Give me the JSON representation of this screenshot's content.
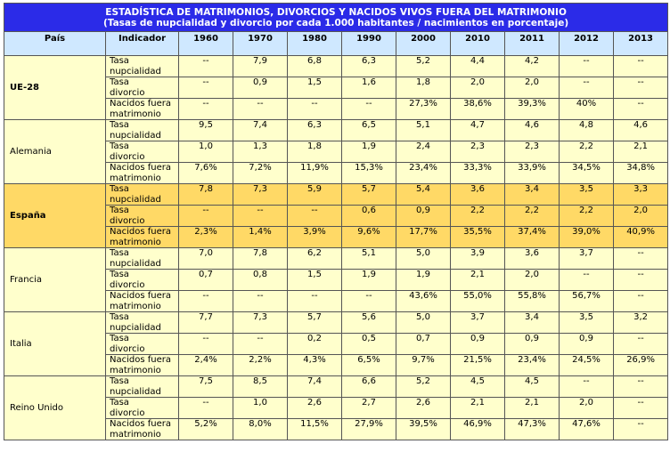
{
  "title": "ESTADÍSTICA DE MATRIMONIOS, DIVORCIOS Y NACIDOS VIVOS FUERA DEL MATRIMONIO",
  "subtitle": "(Tasas de nupcialidad y divorcio por cada 1.000 habitantes / nacimientos en porcentaje)",
  "headers": [
    "País",
    "Indicador",
    "1960",
    "1970",
    "1980",
    "1990",
    "2000",
    "2010",
    "2011",
    "2012",
    "2013"
  ],
  "indicators": [
    [
      "Tasa",
      "nupcialidad"
    ],
    [
      "Tasa",
      "divorcio"
    ],
    [
      "Nacidos fuera",
      "matrimonio"
    ]
  ],
  "highlight_color": "#ffd966",
  "countries": [
    {
      "name": "UE-28",
      "bold": true,
      "highlight": false,
      "rows": [
        [
          "--",
          "7,9",
          "6,8",
          "6,3",
          "5,2",
          "4,4",
          "4,2",
          "--",
          "--"
        ],
        [
          "--",
          "0,9",
          "1,5",
          "1,6",
          "1,8",
          "2,0",
          "2,0",
          "--",
          "--"
        ],
        [
          "--",
          "--",
          "--",
          "--",
          "27,3%",
          "38,6%",
          "39,3%",
          "40%",
          "--"
        ]
      ]
    },
    {
      "name": "Alemania",
      "bold": false,
      "highlight": false,
      "rows": [
        [
          "9,5",
          "7,4",
          "6,3",
          "6,5",
          "5,1",
          "4,7",
          "4,6",
          "4,8",
          "4,6"
        ],
        [
          "1,0",
          "1,3",
          "1,8",
          "1,9",
          "2,4",
          "2,3",
          "2,3",
          "2,2",
          "2,1"
        ],
        [
          "7,6%",
          "7,2%",
          "11,9%",
          "15,3%",
          "23,4%",
          "33,3%",
          "33,9%",
          "34,5%",
          "34,8%"
        ]
      ]
    },
    {
      "name": "España",
      "bold": true,
      "highlight": true,
      "rows": [
        [
          "7,8",
          "7,3",
          "5,9",
          "5,7",
          "5,4",
          "3,6",
          "3,4",
          "3,5",
          "3,3"
        ],
        [
          "--",
          "--",
          "--",
          "0,6",
          "0,9",
          "2,2",
          "2,2",
          "2,2",
          "2,0"
        ],
        [
          "2,3%",
          "1,4%",
          "3,9%",
          "9,6%",
          "17,7%",
          "35,5%",
          "37,4%",
          "39,0%",
          "40,9%"
        ]
      ]
    },
    {
      "name": "Francia",
      "bold": false,
      "highlight": false,
      "rows": [
        [
          "7,0",
          "7,8",
          "6,2",
          "5,1",
          "5,0",
          "3,9",
          "3,6",
          "3,7",
          "--"
        ],
        [
          "0,7",
          "0,8",
          "1,5",
          "1,9",
          "1,9",
          "2,1",
          "2,0",
          "--",
          "--"
        ],
        [
          "--",
          "--",
          "--",
          "--",
          "43,6%",
          "55,0%",
          "55,8%",
          "56,7%",
          "--"
        ]
      ]
    },
    {
      "name": "Italia",
      "bold": false,
      "highlight": false,
      "rows": [
        [
          "7,7",
          "7,3",
          "5,7",
          "5,6",
          "5,0",
          "3,7",
          "3,4",
          "3,5",
          "3,2"
        ],
        [
          "--",
          "--",
          "0,2",
          "0,5",
          "0,7",
          "0,9",
          "0,9",
          "0,9",
          "--"
        ],
        [
          "2,4%",
          "2,2%",
          "4,3%",
          "6,5%",
          "9,7%",
          "21,5%",
          "23,4%",
          "24,5%",
          "26,9%"
        ]
      ]
    },
    {
      "name": "Reino Unido",
      "bold": false,
      "highlight": false,
      "rows": [
        [
          "7,5",
          "8,5",
          "7,4",
          "6,6",
          "5,2",
          "4,5",
          "4,5",
          "--",
          "--"
        ],
        [
          "--",
          "1,0",
          "2,6",
          "2,7",
          "2,6",
          "2,1",
          "2,1",
          "2,0",
          "--"
        ],
        [
          "5,2%",
          "8,0%",
          "11,5%",
          "27,9%",
          "39,5%",
          "46,9%",
          "47,3%",
          "47,6%",
          "--"
        ]
      ]
    }
  ]
}
